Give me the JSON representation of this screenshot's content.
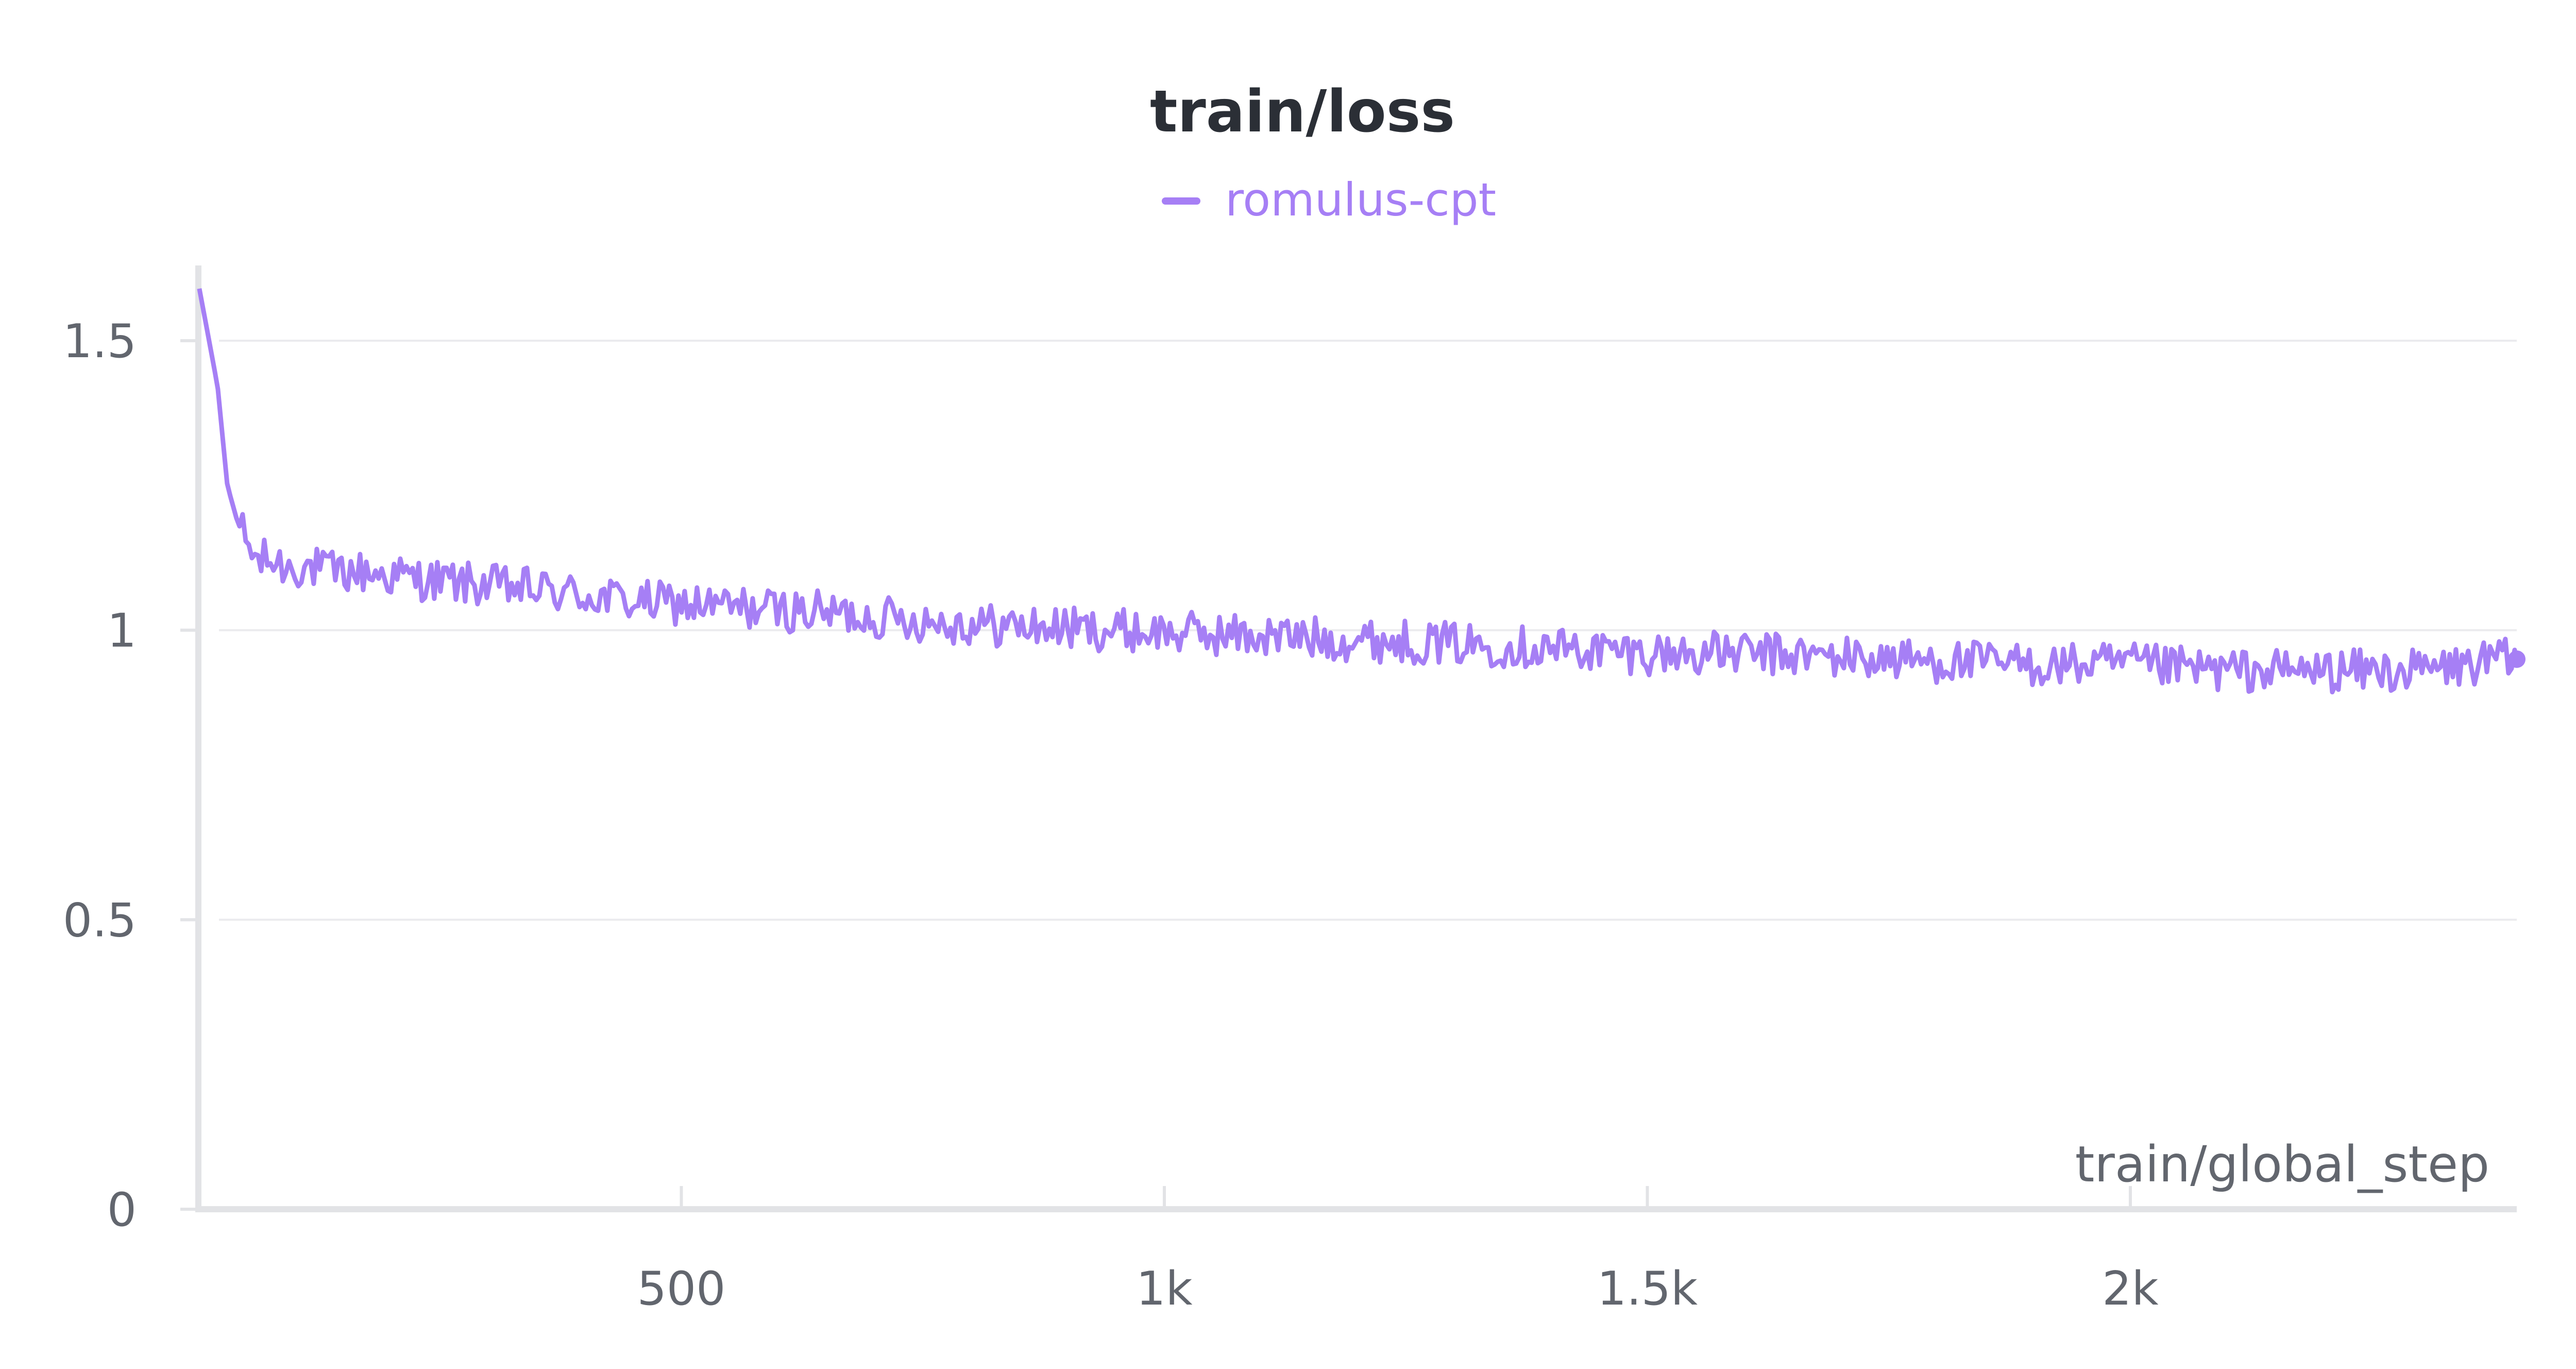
{
  "chart_data": {
    "type": "line",
    "title": "train/loss",
    "xlabel": "train/global_step",
    "ylabel": "",
    "xlim": [
      0,
      2400
    ],
    "ylim": [
      0,
      1.63
    ],
    "x_ticks": [
      {
        "value": 500,
        "label": "500"
      },
      {
        "value": 1000,
        "label": "1k"
      },
      {
        "value": 1500,
        "label": "1.5k"
      },
      {
        "value": 2000,
        "label": "2k"
      }
    ],
    "y_ticks": [
      {
        "value": 0,
        "label": "0"
      },
      {
        "value": 0.5,
        "label": "0.5"
      },
      {
        "value": 1,
        "label": "1"
      },
      {
        "value": 1.5,
        "label": "1.5"
      }
    ],
    "grid": "horizontal",
    "legend_position": "top-center",
    "series": [
      {
        "name": "romulus-cpt",
        "color": "#a67ff5",
        "x": [
          1,
          10,
          20,
          30,
          40,
          50,
          60,
          75,
          90,
          110,
          140,
          175,
          220,
          280,
          350,
          450,
          550,
          650,
          800,
          950,
          1100,
          1250,
          1400,
          1500,
          1600,
          1750,
          1900,
          2000,
          2100,
          2200,
          2300,
          2400
        ],
        "y": [
          1.59,
          1.51,
          1.42,
          1.25,
          1.19,
          1.15,
          1.12,
          1.12,
          1.11,
          1.11,
          1.1,
          1.1,
          1.09,
          1.08,
          1.07,
          1.05,
          1.04,
          1.03,
          1.01,
          1.0,
          0.99,
          0.98,
          0.97,
          0.96,
          0.96,
          0.95,
          0.94,
          0.94,
          0.93,
          0.93,
          0.93,
          0.95
        ]
      }
    ]
  }
}
